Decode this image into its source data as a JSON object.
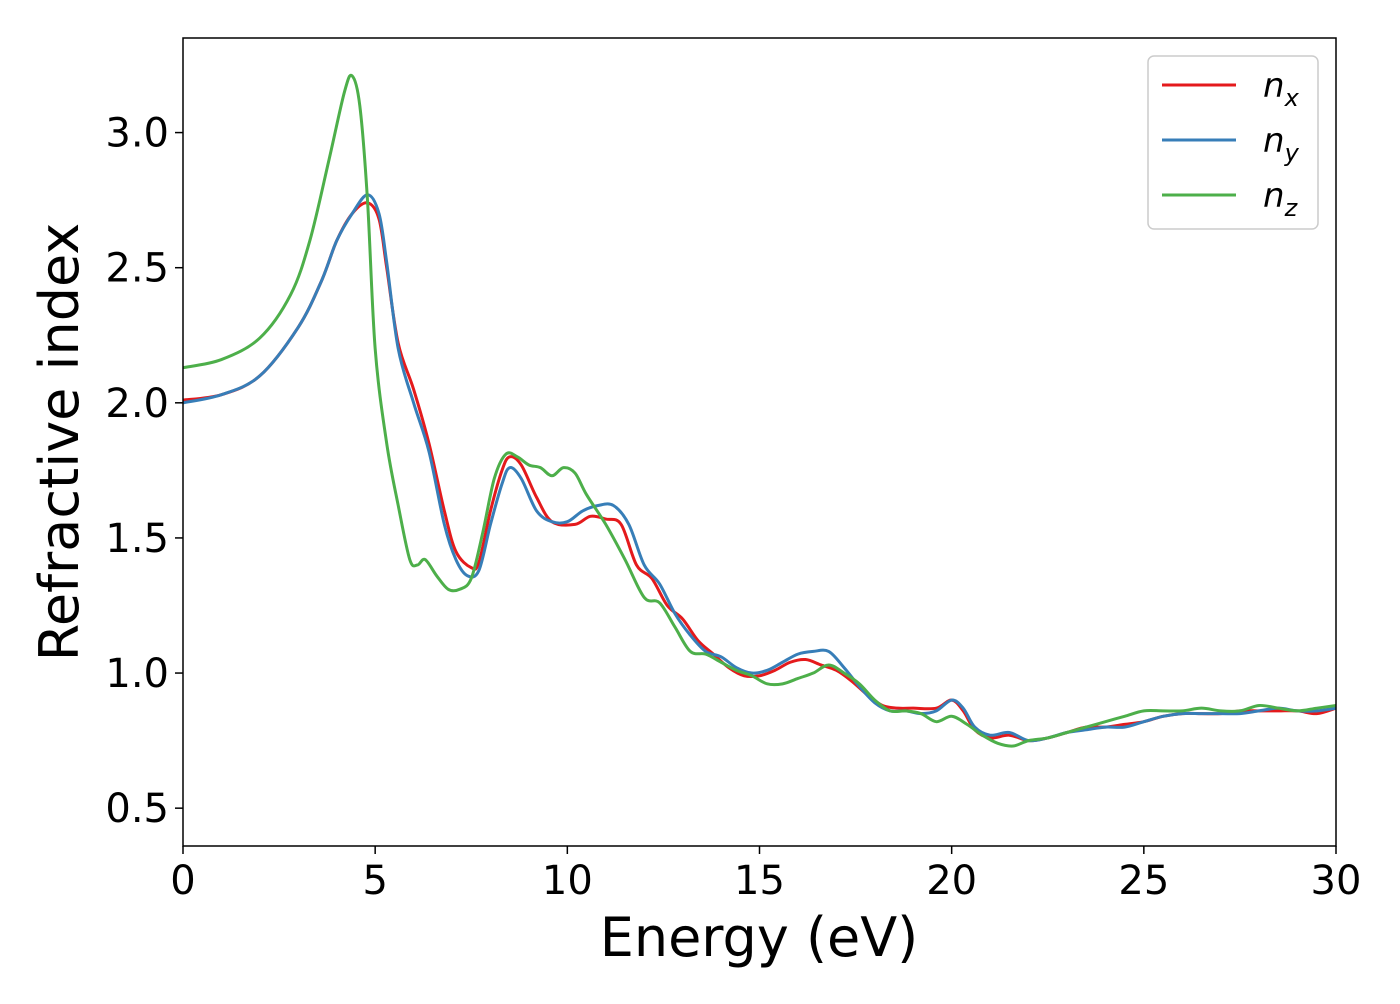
{
  "chart_data": {
    "type": "line",
    "title": "",
    "xlabel": "Energy (eV)",
    "ylabel": "Refractive index",
    "xlim": [
      0,
      30
    ],
    "ylim": [
      0.36,
      3.35
    ],
    "xticks": [
      0,
      5,
      10,
      15,
      20,
      25,
      30
    ],
    "yticks": [
      0.5,
      1.0,
      1.5,
      2.0,
      2.5,
      3.0
    ],
    "xtick_labels": [
      "0",
      "5",
      "10",
      "15",
      "20",
      "25",
      "30"
    ],
    "ytick_labels": [
      "0.5",
      "1.0",
      "1.5",
      "2.0",
      "2.5",
      "3.0"
    ],
    "grid": false,
    "legend_position": "top-right",
    "series": [
      {
        "name": "n",
        "subscript": "x",
        "color": "#e41a1c",
        "points": [
          [
            0,
            2.01
          ],
          [
            1,
            2.03
          ],
          [
            2,
            2.1
          ],
          [
            3,
            2.28
          ],
          [
            3.6,
            2.45
          ],
          [
            4,
            2.6
          ],
          [
            4.4,
            2.7
          ],
          [
            4.8,
            2.74
          ],
          [
            5.1,
            2.68
          ],
          [
            5.3,
            2.5
          ],
          [
            5.6,
            2.22
          ],
          [
            6,
            2.05
          ],
          [
            6.4,
            1.85
          ],
          [
            6.8,
            1.6
          ],
          [
            7.1,
            1.45
          ],
          [
            7.5,
            1.39
          ],
          [
            7.7,
            1.41
          ],
          [
            8,
            1.6
          ],
          [
            8.3,
            1.75
          ],
          [
            8.5,
            1.8
          ],
          [
            8.8,
            1.77
          ],
          [
            9.2,
            1.65
          ],
          [
            9.6,
            1.56
          ],
          [
            10.2,
            1.55
          ],
          [
            10.6,
            1.58
          ],
          [
            11,
            1.57
          ],
          [
            11.4,
            1.55
          ],
          [
            11.8,
            1.4
          ],
          [
            12.2,
            1.35
          ],
          [
            12.6,
            1.25
          ],
          [
            13,
            1.2
          ],
          [
            13.4,
            1.12
          ],
          [
            13.8,
            1.07
          ],
          [
            14.2,
            1.02
          ],
          [
            14.6,
            0.99
          ],
          [
            15,
            0.99
          ],
          [
            15.4,
            1.01
          ],
          [
            15.8,
            1.04
          ],
          [
            16.2,
            1.05
          ],
          [
            16.6,
            1.03
          ],
          [
            17,
            1.01
          ],
          [
            17.4,
            0.97
          ],
          [
            17.8,
            0.92
          ],
          [
            18.2,
            0.88
          ],
          [
            18.6,
            0.87
          ],
          [
            19,
            0.87
          ],
          [
            19.6,
            0.87
          ],
          [
            20,
            0.9
          ],
          [
            20.3,
            0.86
          ],
          [
            20.6,
            0.79
          ],
          [
            21,
            0.76
          ],
          [
            21.5,
            0.77
          ],
          [
            22,
            0.75
          ],
          [
            22.5,
            0.76
          ],
          [
            23,
            0.78
          ],
          [
            23.5,
            0.8
          ],
          [
            24,
            0.8
          ],
          [
            24.5,
            0.81
          ],
          [
            25,
            0.82
          ],
          [
            25.5,
            0.84
          ],
          [
            26,
            0.85
          ],
          [
            26.5,
            0.85
          ],
          [
            27,
            0.85
          ],
          [
            27.5,
            0.86
          ],
          [
            28,
            0.86
          ],
          [
            28.5,
            0.86
          ],
          [
            29,
            0.86
          ],
          [
            29.5,
            0.85
          ],
          [
            30,
            0.87
          ]
        ]
      },
      {
        "name": "n",
        "subscript": "y",
        "color": "#377eb8",
        "points": [
          [
            0,
            2.0
          ],
          [
            1,
            2.03
          ],
          [
            2,
            2.1
          ],
          [
            3,
            2.28
          ],
          [
            3.6,
            2.45
          ],
          [
            4,
            2.6
          ],
          [
            4.4,
            2.7
          ],
          [
            4.8,
            2.77
          ],
          [
            5.1,
            2.7
          ],
          [
            5.3,
            2.52
          ],
          [
            5.6,
            2.2
          ],
          [
            6,
            2.0
          ],
          [
            6.4,
            1.82
          ],
          [
            6.8,
            1.55
          ],
          [
            7.1,
            1.42
          ],
          [
            7.4,
            1.36
          ],
          [
            7.7,
            1.38
          ],
          [
            8,
            1.55
          ],
          [
            8.3,
            1.7
          ],
          [
            8.5,
            1.76
          ],
          [
            8.8,
            1.72
          ],
          [
            9.2,
            1.6
          ],
          [
            9.6,
            1.56
          ],
          [
            10,
            1.56
          ],
          [
            10.4,
            1.6
          ],
          [
            10.8,
            1.62
          ],
          [
            11.2,
            1.62
          ],
          [
            11.6,
            1.55
          ],
          [
            12,
            1.4
          ],
          [
            12.4,
            1.33
          ],
          [
            12.8,
            1.22
          ],
          [
            13.2,
            1.14
          ],
          [
            13.6,
            1.08
          ],
          [
            14,
            1.06
          ],
          [
            14.4,
            1.02
          ],
          [
            14.8,
            1.0
          ],
          [
            15.2,
            1.01
          ],
          [
            15.6,
            1.04
          ],
          [
            16,
            1.07
          ],
          [
            16.4,
            1.08
          ],
          [
            16.8,
            1.08
          ],
          [
            17.2,
            1.02
          ],
          [
            17.6,
            0.95
          ],
          [
            18,
            0.89
          ],
          [
            18.4,
            0.86
          ],
          [
            18.8,
            0.86
          ],
          [
            19.2,
            0.85
          ],
          [
            19.6,
            0.86
          ],
          [
            20,
            0.9
          ],
          [
            20.3,
            0.87
          ],
          [
            20.6,
            0.8
          ],
          [
            21,
            0.77
          ],
          [
            21.5,
            0.78
          ],
          [
            22,
            0.75
          ],
          [
            22.5,
            0.76
          ],
          [
            23,
            0.78
          ],
          [
            23.5,
            0.79
          ],
          [
            24,
            0.8
          ],
          [
            24.5,
            0.8
          ],
          [
            25,
            0.82
          ],
          [
            25.5,
            0.84
          ],
          [
            26,
            0.85
          ],
          [
            26.5,
            0.85
          ],
          [
            27,
            0.85
          ],
          [
            27.5,
            0.85
          ],
          [
            28,
            0.86
          ],
          [
            28.5,
            0.87
          ],
          [
            29,
            0.86
          ],
          [
            29.5,
            0.86
          ],
          [
            30,
            0.87
          ]
        ]
      },
      {
        "name": "n",
        "subscript": "z",
        "color": "#4daf4a",
        "points": [
          [
            0,
            2.13
          ],
          [
            1,
            2.16
          ],
          [
            2,
            2.24
          ],
          [
            2.8,
            2.4
          ],
          [
            3.3,
            2.6
          ],
          [
            3.8,
            2.9
          ],
          [
            4.2,
            3.15
          ],
          [
            4.4,
            3.21
          ],
          [
            4.6,
            3.1
          ],
          [
            4.8,
            2.75
          ],
          [
            5,
            2.2
          ],
          [
            5.3,
            1.85
          ],
          [
            5.6,
            1.62
          ],
          [
            5.9,
            1.42
          ],
          [
            6.1,
            1.4
          ],
          [
            6.3,
            1.42
          ],
          [
            6.6,
            1.36
          ],
          [
            6.9,
            1.31
          ],
          [
            7.2,
            1.31
          ],
          [
            7.5,
            1.35
          ],
          [
            7.8,
            1.52
          ],
          [
            8.1,
            1.72
          ],
          [
            8.4,
            1.81
          ],
          [
            8.7,
            1.8
          ],
          [
            9,
            1.77
          ],
          [
            9.3,
            1.76
          ],
          [
            9.6,
            1.73
          ],
          [
            9.9,
            1.76
          ],
          [
            10.2,
            1.74
          ],
          [
            10.5,
            1.66
          ],
          [
            11,
            1.55
          ],
          [
            11.5,
            1.42
          ],
          [
            12,
            1.28
          ],
          [
            12.4,
            1.26
          ],
          [
            12.8,
            1.17
          ],
          [
            13.2,
            1.08
          ],
          [
            13.6,
            1.07
          ],
          [
            14,
            1.04
          ],
          [
            14.4,
            1.01
          ],
          [
            14.8,
            0.99
          ],
          [
            15.2,
            0.96
          ],
          [
            15.6,
            0.96
          ],
          [
            16,
            0.98
          ],
          [
            16.4,
            1.0
          ],
          [
            16.8,
            1.03
          ],
          [
            17.2,
            1.0
          ],
          [
            17.6,
            0.96
          ],
          [
            18,
            0.9
          ],
          [
            18.4,
            0.86
          ],
          [
            18.8,
            0.86
          ],
          [
            19.2,
            0.85
          ],
          [
            19.6,
            0.82
          ],
          [
            20,
            0.84
          ],
          [
            20.4,
            0.81
          ],
          [
            20.8,
            0.77
          ],
          [
            21.2,
            0.74
          ],
          [
            21.6,
            0.73
          ],
          [
            22,
            0.75
          ],
          [
            22.5,
            0.76
          ],
          [
            23,
            0.78
          ],
          [
            23.5,
            0.8
          ],
          [
            24,
            0.82
          ],
          [
            24.5,
            0.84
          ],
          [
            25,
            0.86
          ],
          [
            25.5,
            0.86
          ],
          [
            26,
            0.86
          ],
          [
            26.5,
            0.87
          ],
          [
            27,
            0.86
          ],
          [
            27.5,
            0.86
          ],
          [
            28,
            0.88
          ],
          [
            28.5,
            0.87
          ],
          [
            29,
            0.86
          ],
          [
            29.5,
            0.87
          ],
          [
            30,
            0.88
          ]
        ]
      }
    ]
  }
}
